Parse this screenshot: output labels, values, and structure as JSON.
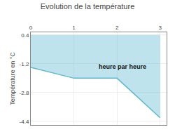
{
  "chart_data": {
    "type": "line",
    "title": "Evolution de la température",
    "y_label": "Température en °C",
    "x": [
      0,
      1,
      2,
      3
    ],
    "values": [
      -1.4,
      -2.0,
      -2.0,
      -4.2
    ],
    "fill_top": 0.4,
    "color": "#60b8d0",
    "xlim": [
      0,
      3.15
    ],
    "xticks": [
      0,
      1,
      2,
      3
    ],
    "ylim": [
      -4.6,
      0.55
    ],
    "yticks": [
      0.4,
      -1.2,
      -2.8,
      -4.4
    ],
    "grid": true,
    "annotations": [
      {
        "text": "heure par heure",
        "x": 1.55,
        "y": -1.1
      }
    ]
  }
}
